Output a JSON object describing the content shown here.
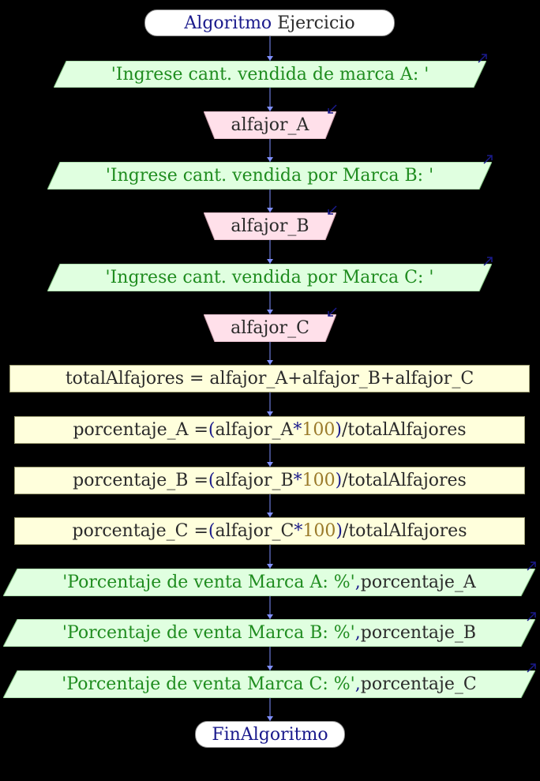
{
  "diagram": {
    "start": {
      "word1": "Algoritmo",
      "word2": "Ejercicio"
    },
    "end": {
      "label": "FinAlgoritmo"
    },
    "prompt_a": "'Ingrese cant. vendida de marca A: '",
    "read_a": "alfajor_A",
    "prompt_b": "'Ingrese cant. vendida por Marca B: '",
    "read_b": "alfajor_B",
    "prompt_c": "'Ingrese cant. vendida por Marca C: '",
    "read_c": "alfajor_C",
    "total": "totalAlfajores = alfajor_A+alfajor_B+alfajor_C",
    "pct_a": {
      "lhs": "porcentaje_A = ",
      "op": "(",
      "var": "alfajor_A",
      "mul": "*",
      "num": "100",
      "close": ")",
      "rest": "/totalAlfajores"
    },
    "pct_b": {
      "lhs": "porcentaje_B = ",
      "op": "(",
      "var": "alfajor_B",
      "mul": "*",
      "num": "100",
      "close": ")",
      "rest": "/totalAlfajores"
    },
    "pct_c": {
      "lhs": "porcentaje_C = ",
      "op": "(",
      "var": "alfajor_C",
      "mul": "*",
      "num": "100",
      "close": ")",
      "rest": "/totalAlfajores"
    },
    "out_a": {
      "str": "'Porcentaje de venta Marca A: %'",
      "sep": ",",
      "var": "porcentaje_A"
    },
    "out_b": {
      "str": "'Porcentaje de venta Marca B: %'",
      "sep": ",",
      "var": "porcentaje_B"
    },
    "out_c": {
      "str": "'Porcentaje de venta Marca C: %'",
      "sep": ",",
      "var": "porcentaje_C"
    }
  },
  "colors": {
    "background": "#000000",
    "connector": "#8090ff",
    "output_fill": "#e0ffe0",
    "input_fill": "#ffe0ea",
    "process_fill": "#ffffdc",
    "string_text": "#1f8c1f",
    "keyword_text": "#1a1a8c"
  }
}
